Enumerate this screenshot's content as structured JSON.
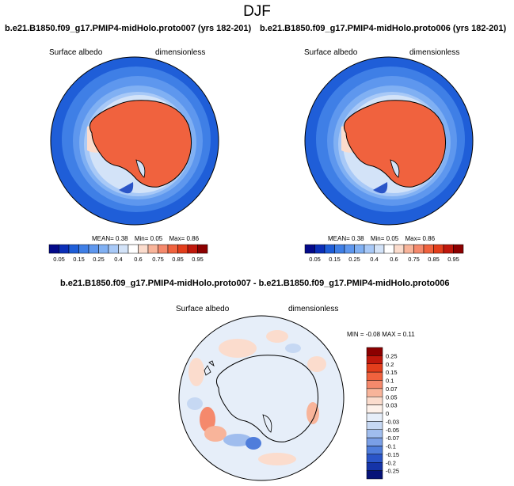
{
  "page": {
    "season": "DJF"
  },
  "panels": [
    {
      "case_title": "b.e21.B1850.f09_g17.PMIP4-midHolo.proto007 (yrs 182-201)",
      "variable_label": "Surface albedo",
      "units_label": "dimensionless",
      "stats": {
        "mean_label": "MEAN=",
        "mean": "0.38",
        "min_label": "Min=",
        "min": "0.05",
        "max_label": "Max=",
        "max": "0.86"
      }
    },
    {
      "case_title": "b.e21.B1850.f09_g17.PMIP4-midHolo.proto006 (yrs 182-201)",
      "variable_label": "Surface albedo",
      "units_label": "dimensionless",
      "stats": {
        "mean_label": "MEAN=",
        "mean": "0.38",
        "min_label": "Min=",
        "min": "0.05",
        "max_label": "Max=",
        "max": "0.86"
      }
    }
  ],
  "difference": {
    "title": "b.e21.B1850.f09_g17.PMIP4-midHolo.proto007 - b.e21.B1850.f09_g17.PMIP4-midHolo.proto006",
    "variable_label": "Surface albedo",
    "units_label": "dimensionless",
    "stats_text": "MIN = -0.08 MAX =  0.11"
  },
  "chart_data": [
    {
      "type": "heatmap",
      "projection": "south-polar-stereographic",
      "title": "b.e21.B1850.f09_g17.PMIP4-midHolo.proto007 (yrs 182-201)",
      "variable": "Surface albedo",
      "units": "dimensionless",
      "mean": 0.38,
      "min": 0.05,
      "max": 0.86,
      "colorbar": {
        "orientation": "horizontal",
        "levels": [
          "0.05",
          "0.15",
          "0.25",
          "0.4",
          "0.6",
          "0.75",
          "0.85",
          "0.95"
        ],
        "colors": [
          "#040a8a",
          "#0b2fb8",
          "#1f5ed8",
          "#3f7fe6",
          "#5e97ee",
          "#80b0f3",
          "#a8c9f7",
          "#d3e3f8",
          "#ffffff",
          "#fbdccd",
          "#f8b49a",
          "#f5896c",
          "#f0623e",
          "#e33e1c",
          "#c0180c",
          "#8c0000"
        ]
      }
    },
    {
      "type": "heatmap",
      "projection": "south-polar-stereographic",
      "title": "b.e21.B1850.f09_g17.PMIP4-midHolo.proto006 (yrs 182-201)",
      "variable": "Surface albedo",
      "units": "dimensionless",
      "mean": 0.38,
      "min": 0.05,
      "max": 0.86,
      "colorbar": {
        "orientation": "horizontal",
        "levels": [
          "0.05",
          "0.15",
          "0.25",
          "0.4",
          "0.6",
          "0.75",
          "0.85",
          "0.95"
        ],
        "colors": [
          "#040a8a",
          "#0b2fb8",
          "#1f5ed8",
          "#3f7fe6",
          "#5e97ee",
          "#80b0f3",
          "#a8c9f7",
          "#d3e3f8",
          "#ffffff",
          "#fbdccd",
          "#f8b49a",
          "#f5896c",
          "#f0623e",
          "#e33e1c",
          "#c0180c",
          "#8c0000"
        ]
      }
    },
    {
      "type": "heatmap",
      "projection": "south-polar-stereographic",
      "title": "b.e21.B1850.f09_g17.PMIP4-midHolo.proto007 - b.e21.B1850.f09_g17.PMIP4-midHolo.proto006",
      "variable": "Surface albedo",
      "units": "dimensionless",
      "min": -0.08,
      "max": 0.11,
      "colorbar": {
        "orientation": "vertical",
        "levels": [
          "0.25",
          "0.2",
          "0.15",
          "0.1",
          "0.07",
          "0.05",
          "0.03",
          "0",
          "-0.03",
          "-0.05",
          "-0.07",
          "-0.1",
          "-0.15",
          "-0.2",
          "-0.25"
        ],
        "colors": [
          "#8c0000",
          "#c0180c",
          "#e33e1c",
          "#f0623e",
          "#f5896c",
          "#f8b49a",
          "#fbdccd",
          "#fdf1ea",
          "#e6eef9",
          "#c6d8f3",
          "#a0bdee",
          "#7a9fe6",
          "#4f7ddb",
          "#2a55c8",
          "#1534a8",
          "#061278"
        ]
      }
    }
  ]
}
